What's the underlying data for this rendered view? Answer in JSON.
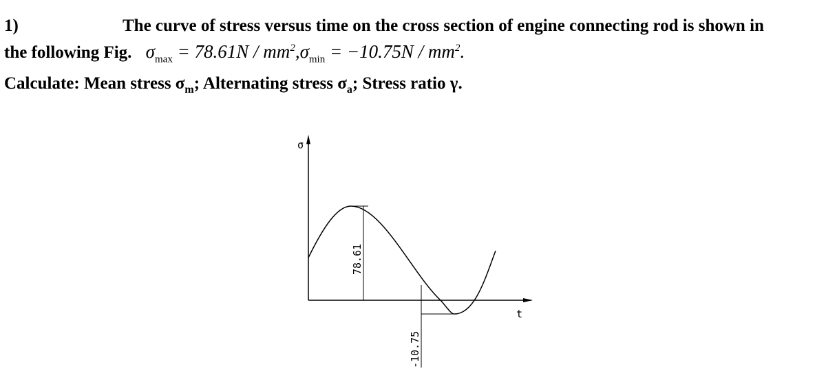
{
  "problem": {
    "number": "1)",
    "line1": "The curve of stress versus time on the cross section of engine connecting rod is shown in",
    "line2_lead": "the following Fig.",
    "formula": [
      {
        "text": "σ"
      },
      {
        "sub": "max"
      },
      {
        "text": " = 78.61N / mm"
      },
      {
        "sup": "2"
      },
      {
        "text": ",σ"
      },
      {
        "sub": "min"
      },
      {
        "text": " = −10.75N / mm"
      },
      {
        "sup": "2"
      },
      {
        "text": "."
      }
    ],
    "task": [
      {
        "text": "Calculate: Mean stress σ"
      },
      {
        "sub": "m"
      },
      {
        "text": "; Alternating stress σ"
      },
      {
        "sub": "a"
      },
      {
        "text": "; Stress ratio γ."
      }
    ]
  },
  "figure": {
    "y_axis_label": "σ",
    "x_axis_label": "t",
    "max_label": "78.61",
    "min_label": "-10.75"
  }
}
